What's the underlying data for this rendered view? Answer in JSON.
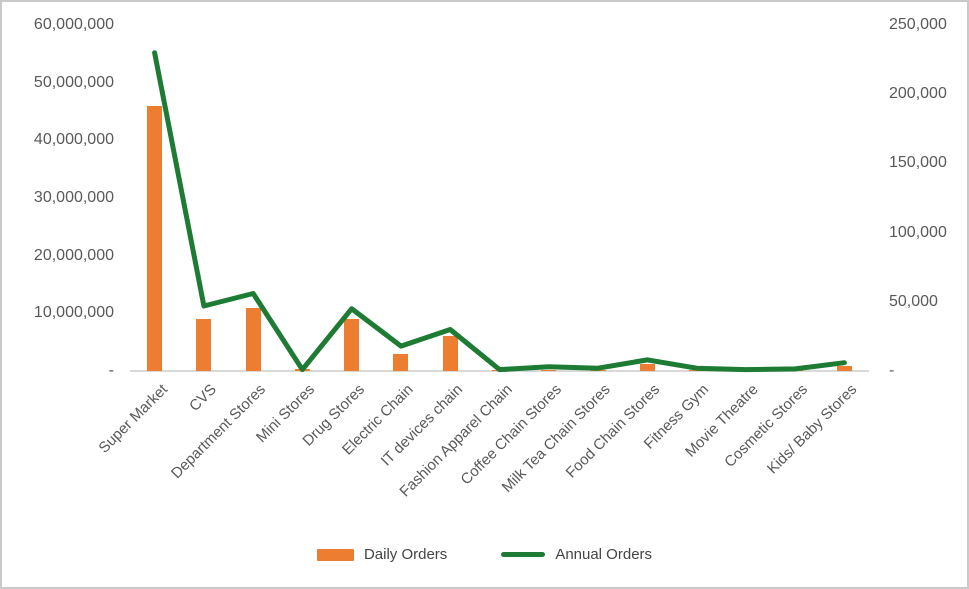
{
  "chart_data": {
    "type": "combo",
    "title": "",
    "categories": [
      "Super Market",
      "CVS",
      "Department Stores",
      "Mini Stores",
      "Drug Stores",
      "Electric Chain",
      "IT devices chain",
      "Fashion Apparel Chain",
      "Coffee Chain Stores",
      "Milk Tea Chain Stores",
      "Food Chain Stores",
      "Fitness Gym",
      "Movie Theatre",
      "Cosmetic Stores",
      "Kids/ Baby Stores"
    ],
    "series": [
      {
        "name": "Daily Orders",
        "type": "bar",
        "axis": "left",
        "values": [
          46000000,
          9000000,
          11000000,
          300000,
          9000000,
          3000000,
          6000000,
          100000,
          200000,
          200000,
          1200000,
          100000,
          100000,
          150000,
          900000
        ]
      },
      {
        "name": "Annual Orders",
        "type": "line",
        "axis": "right",
        "values": [
          230000,
          47000,
          56000,
          1000,
          45000,
          18000,
          30000,
          1000,
          3000,
          2000,
          8000,
          2000,
          1000,
          1500,
          6000
        ]
      }
    ],
    "left_axis": {
      "min": 0,
      "max": 60000000,
      "ticks": [
        {
          "label": "60,000,000",
          "value": 60000000
        },
        {
          "label": "50,000,000",
          "value": 50000000
        },
        {
          "label": "40,000,000",
          "value": 40000000
        },
        {
          "label": "30,000,000",
          "value": 30000000
        },
        {
          "label": "20,000,000",
          "value": 20000000
        },
        {
          "label": "10,000,000",
          "value": 10000000
        },
        {
          "label": "-",
          "value": 0
        }
      ]
    },
    "right_axis": {
      "min": 0,
      "max": 250000,
      "ticks": [
        {
          "label": "250,000",
          "value": 250000
        },
        {
          "label": "200,000",
          "value": 200000
        },
        {
          "label": "150,000",
          "value": 150000
        },
        {
          "label": "100,000",
          "value": 100000
        },
        {
          "label": "50,000",
          "value": 50000
        },
        {
          "label": "-",
          "value": 0
        }
      ]
    },
    "legend_position": "bottom",
    "grid": false,
    "colors": {
      "bar": "#ED7D31",
      "line": "#1E7B34",
      "axis_text": "#595959",
      "axis_line": "#D9D9D9",
      "legend_text": "#444444",
      "border": "#C9C9C9",
      "background": "#FFFFFF"
    }
  }
}
